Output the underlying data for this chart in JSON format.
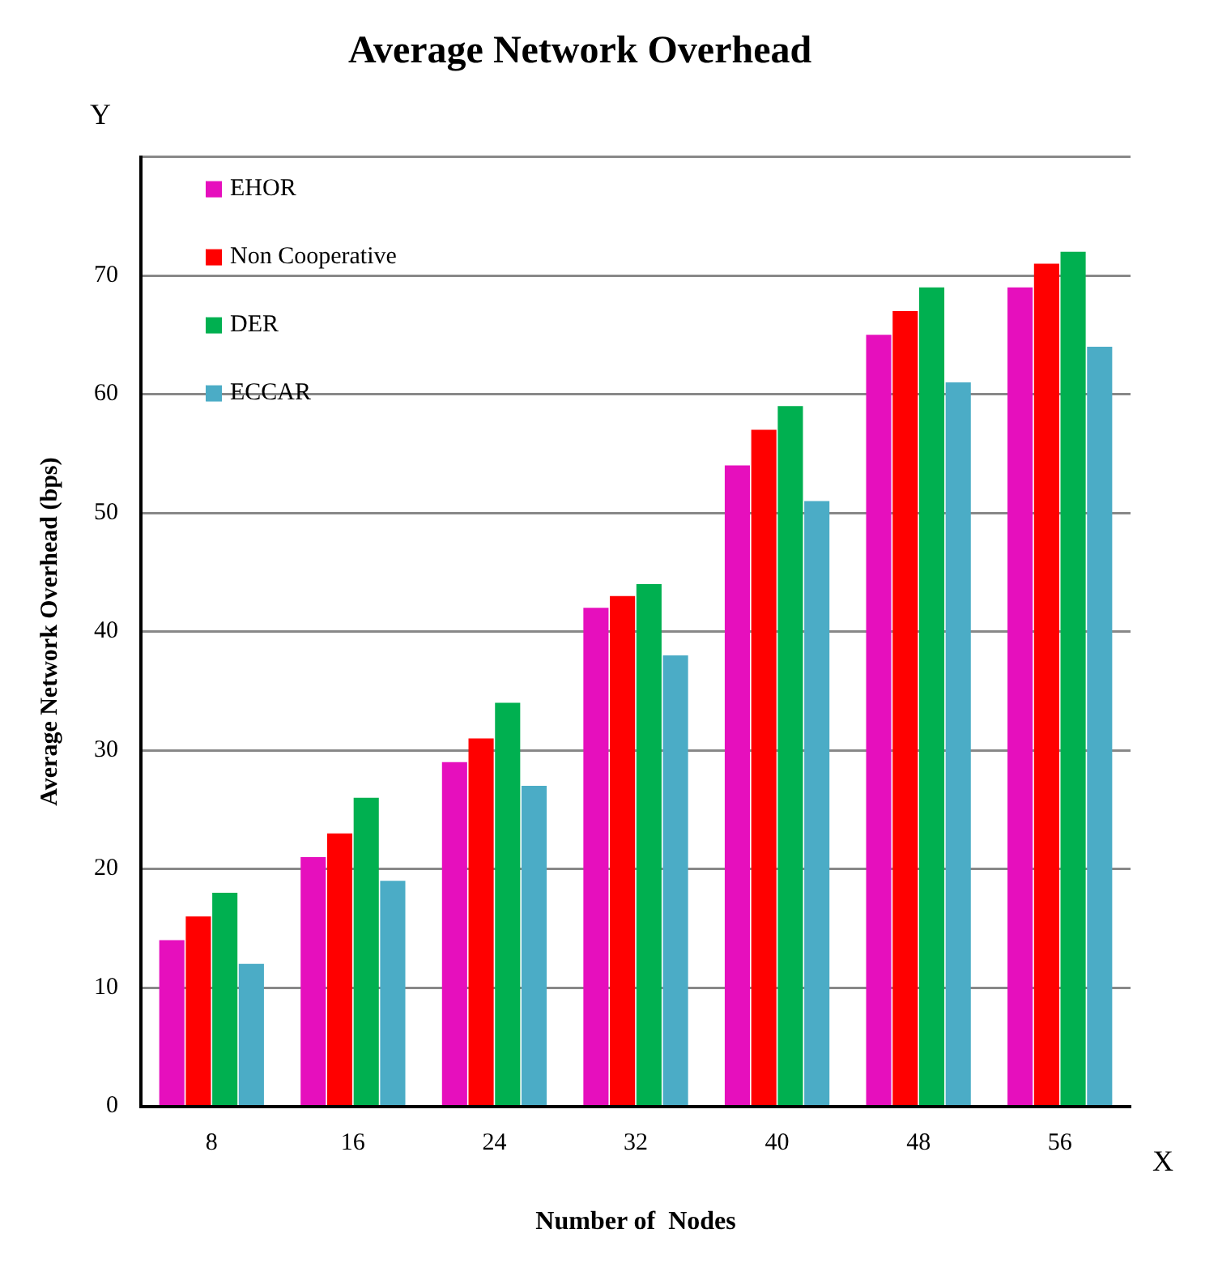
{
  "chart_data": {
    "type": "bar",
    "title": "Average Network Overhead",
    "xlabel": "Number of  Nodes",
    "ylabel": "Average Network Overhead (bps)",
    "categories": [
      "8",
      "16",
      "24",
      "32",
      "40",
      "48",
      "56"
    ],
    "series": [
      {
        "name": "EHOR",
        "color": "#e60fbd",
        "values": [
          14,
          21,
          29,
          42,
          54,
          65,
          69
        ]
      },
      {
        "name": "Non Cooperative",
        "color": "#ff0000",
        "values": [
          16,
          23,
          31,
          43,
          57,
          67,
          71
        ]
      },
      {
        "name": "DER",
        "color": "#00b050",
        "values": [
          18,
          26,
          34,
          44,
          59,
          69,
          72
        ]
      },
      {
        "name": "ECCAR",
        "color": "#4bacc6",
        "values": [
          12,
          19,
          27,
          38,
          51,
          61,
          64
        ]
      }
    ],
    "ylim": [
      0,
      80
    ],
    "yticks": [
      0,
      10,
      20,
      30,
      40,
      50,
      60,
      70,
      {
        "value": 80,
        "label": null
      }
    ],
    "grid": "y",
    "legend": "top left",
    "annotations": [
      "Y",
      "X"
    ]
  }
}
